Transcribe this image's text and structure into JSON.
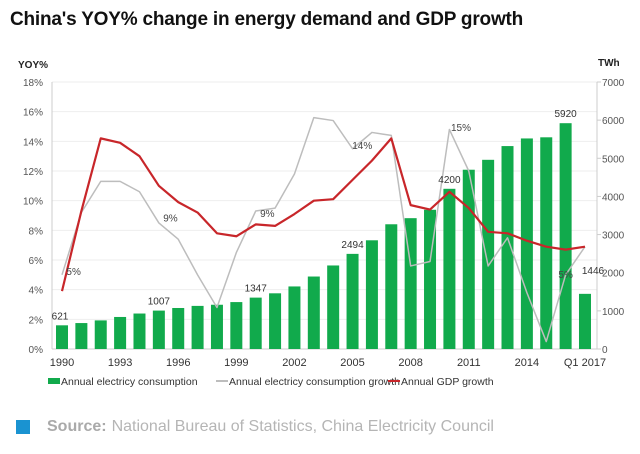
{
  "chart_data": {
    "type": "bar",
    "title": "China's YOY% change in energy demand and GDP growth",
    "left_axis_label": "YOY%",
    "right_axis_label": "TWh",
    "left_ylim": [
      0,
      18
    ],
    "right_ylim": [
      0,
      7000
    ],
    "left_ticks": [
      "0%",
      "2%",
      "4%",
      "6%",
      "8%",
      "10%",
      "12%",
      "14%",
      "16%",
      "18%"
    ],
    "right_ticks": [
      "0",
      "1000",
      "2000",
      "3000",
      "4000",
      "5000",
      "6000",
      "7000"
    ],
    "categories": [
      "1990",
      "1991",
      "1992",
      "1993",
      "1994",
      "1995",
      "1996",
      "1997",
      "1998",
      "1999",
      "2000",
      "2001",
      "2002",
      "2003",
      "2004",
      "2005",
      "2006",
      "2007",
      "2008",
      "2009",
      "2010",
      "2011",
      "2012",
      "2013",
      "2014",
      "2015",
      "2016",
      "Q1 2017"
    ],
    "x_tick_labels": [
      {
        "index": 0,
        "label": "1990"
      },
      {
        "index": 3,
        "label": "1993"
      },
      {
        "index": 6,
        "label": "1996"
      },
      {
        "index": 9,
        "label": "1999"
      },
      {
        "index": 12,
        "label": "2002"
      },
      {
        "index": 15,
        "label": "2005"
      },
      {
        "index": 18,
        "label": "2008"
      },
      {
        "index": 21,
        "label": "2011"
      },
      {
        "index": 24,
        "label": "2014"
      },
      {
        "index": 27,
        "label": "Q1 2017"
      }
    ],
    "grid": true,
    "legend_position": "bottom",
    "series": [
      {
        "name": "Annual electricy consumption",
        "type": "bar",
        "axis": "right",
        "color": "#11aa4c",
        "values": [
          621,
          680,
          750,
          840,
          930,
          1007,
          1075,
          1130,
          1160,
          1230,
          1347,
          1460,
          1640,
          1900,
          2190,
          2494,
          2850,
          3270,
          3430,
          3650,
          4200,
          4700,
          4960,
          5320,
          5520,
          5550,
          5920,
          1446
        ]
      },
      {
        "name": "Annual electricy consumption growth",
        "type": "line",
        "axis": "left",
        "color": "#bdbdbd",
        "values": [
          5.0,
          9.2,
          11.3,
          11.3,
          10.6,
          8.5,
          7.4,
          5.0,
          2.8,
          6.5,
          9.3,
          9.5,
          11.8,
          15.6,
          15.4,
          13.5,
          14.6,
          14.4,
          5.6,
          5.9,
          14.8,
          12.0,
          5.6,
          7.5,
          3.8,
          0.5,
          5.0,
          6.9
        ]
      },
      {
        "name": "Annual GDP growth",
        "type": "line",
        "axis": "left",
        "color": "#c8262a",
        "values": [
          3.9,
          9.3,
          14.2,
          13.9,
          13.0,
          11.0,
          9.9,
          9.2,
          7.8,
          7.6,
          8.4,
          8.3,
          9.1,
          10.0,
          10.1,
          11.4,
          12.7,
          14.2,
          9.7,
          9.4,
          10.6,
          9.5,
          7.9,
          7.8,
          7.3,
          6.9,
          6.7,
          6.9
        ]
      }
    ],
    "bar_labels": [
      {
        "index": 0,
        "label": "621"
      },
      {
        "index": 5,
        "label": "1007"
      },
      {
        "index": 10,
        "label": "1347"
      },
      {
        "index": 15,
        "label": "2494"
      },
      {
        "index": 20,
        "label": "4200"
      },
      {
        "index": 26,
        "label": "5920"
      },
      {
        "index": 27,
        "label": "1446"
      }
    ],
    "line_labels": [
      {
        "index": 0.6,
        "y": 5.0,
        "label": "5%"
      },
      {
        "index": 5.6,
        "y": 8.6,
        "label": "9%"
      },
      {
        "index": 10.6,
        "y": 8.9,
        "label": "9%"
      },
      {
        "index": 15.5,
        "y": 13.5,
        "label": "14%"
      },
      {
        "index": 20.6,
        "y": 14.7,
        "label": "15%"
      },
      {
        "index": 26,
        "y": 4.8,
        "label": "5%"
      }
    ]
  },
  "source": {
    "label": "Source:",
    "text": "National Bureau of Statistics, China Electricity Council"
  }
}
